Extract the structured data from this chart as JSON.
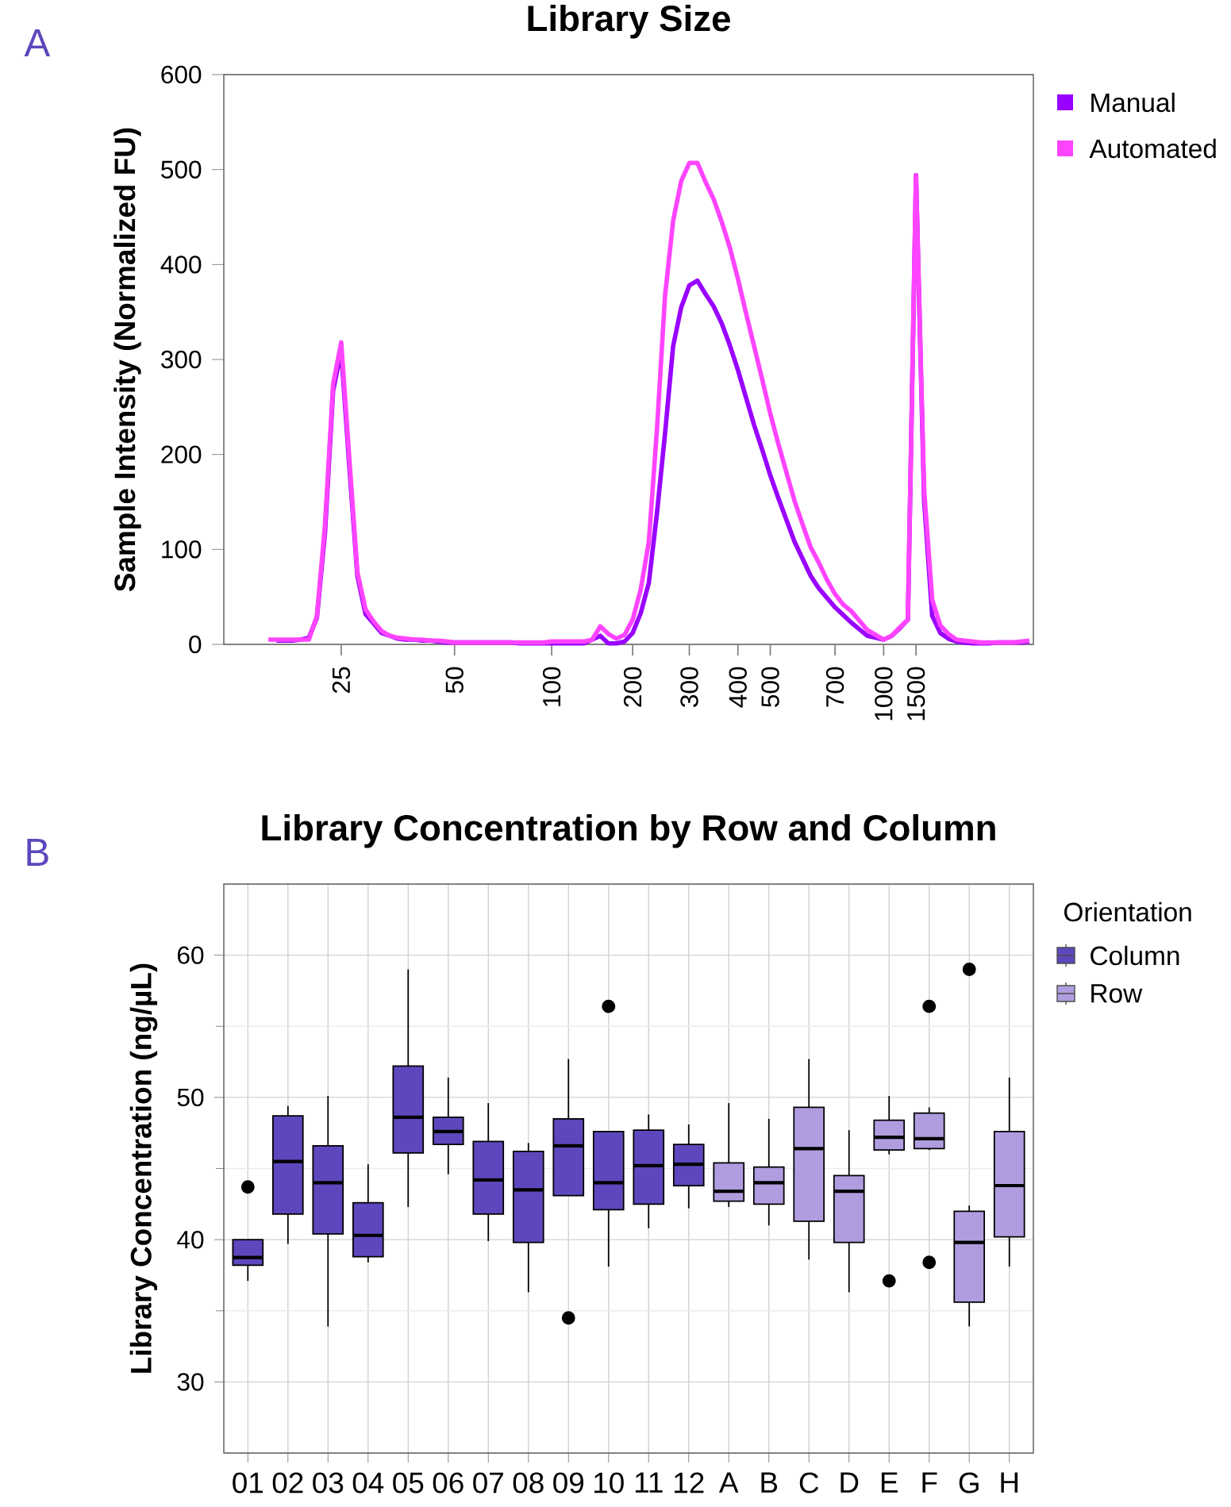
{
  "chart_data": [
    {
      "type": "line",
      "title": "Library Size",
      "ylabel": "Sample Intensity (Normalized FU)",
      "annotations": [
        "A"
      ],
      "legend": "right",
      "ylim": [
        0,
        600
      ],
      "yticks": [
        0,
        100,
        200,
        300,
        400,
        500,
        600
      ],
      "categories": [
        null,
        null,
        null,
        null,
        null,
        null,
        null,
        null,
        null,
        null,
        null,
        null,
        null,
        null,
        "25",
        null,
        null,
        null,
        null,
        null,
        null,
        null,
        null,
        null,
        null,
        null,
        null,
        null,
        "50",
        null,
        null,
        null,
        null,
        null,
        null,
        null,
        null,
        null,
        null,
        null,
        "100",
        null,
        null,
        null,
        null,
        null,
        null,
        null,
        null,
        null,
        "200",
        null,
        null,
        null,
        null,
        null,
        null,
        "300",
        null,
        null,
        null,
        null,
        null,
        "400",
        null,
        null,
        null,
        "500",
        null,
        null,
        null,
        null,
        null,
        null,
        null,
        "700",
        null,
        null,
        null,
        null,
        null,
        "1000",
        null,
        null,
        null,
        "1500",
        null,
        null,
        null,
        null,
        null,
        null,
        null,
        null,
        null,
        null,
        null,
        null,
        null,
        null
      ],
      "series": [
        {
          "name": "Manual",
          "color": "#9900ff",
          "values": [
            null,
            null,
            null,
            null,
            null,
            null,
            4,
            4,
            4,
            5,
            7,
            28,
            118,
            267,
            309,
            188,
            72,
            32,
            22,
            12,
            9,
            6,
            5,
            5,
            4,
            4,
            3,
            2,
            2,
            2,
            2,
            2,
            2,
            2,
            2,
            2,
            1,
            1,
            1,
            1,
            1,
            1,
            1,
            1,
            1,
            5,
            9,
            1,
            1,
            3,
            12,
            33,
            65,
            138,
            222,
            314,
            355,
            378,
            383,
            369,
            356,
            338,
            315,
            289,
            260,
            231,
            205,
            178,
            154,
            131,
            108,
            90,
            72,
            59,
            49,
            39,
            31,
            23,
            16,
            9,
            7,
            5,
            9,
            17,
            26,
            494,
            152,
            30,
            12,
            6,
            3,
            2,
            1,
            1,
            1,
            2,
            2,
            2,
            2,
            3
          ]
        },
        {
          "name": "Automated",
          "color": "#ff44ff",
          "values": [
            null,
            null,
            null,
            null,
            null,
            5,
            5,
            5,
            5,
            5,
            5,
            30,
            126,
            274,
            318,
            196,
            76,
            37,
            24,
            14,
            9,
            7,
            6,
            5,
            5,
            4,
            4,
            3,
            2,
            2,
            2,
            2,
            2,
            2,
            2,
            2,
            2,
            2,
            2,
            2,
            3,
            3,
            3,
            3,
            3,
            5,
            19,
            11,
            6,
            10,
            26,
            58,
            108,
            226,
            367,
            446,
            488,
            507,
            507,
            487,
            469,
            445,
            418,
            385,
            349,
            314,
            279,
            243,
            211,
            181,
            151,
            126,
            102,
            86,
            68,
            53,
            42,
            35,
            25,
            15,
            10,
            5,
            9,
            18,
            26,
            494,
            163,
            47,
            20,
            11,
            5,
            4,
            3,
            2,
            2,
            2,
            2,
            2,
            3,
            4
          ]
        }
      ]
    },
    {
      "type": "box",
      "title": "Library Concentration by Row and Column",
      "ylabel": "Library Concentration (ng/µL)",
      "annotations": [
        "B"
      ],
      "legend": "right",
      "legend_title": "Orientation",
      "grid": true,
      "categories": [
        "01",
        "02",
        "03",
        "04",
        "05",
        "06",
        "07",
        "08",
        "09",
        "10",
        "11",
        "12",
        "A",
        "B",
        "C",
        "D",
        "E",
        "F",
        "G",
        "H"
      ],
      "ylim": [
        25,
        65
      ],
      "yticks": [
        30,
        40,
        50,
        60
      ],
      "series": [
        {
          "name": "Column",
          "color": "#5e47bd",
          "boxes": [
            {
              "low": 37.1,
              "q1": 38.2,
              "median": 38.75,
              "q3": 40.0,
              "high": 40.0,
              "outliers": [
                43.7
              ]
            },
            {
              "low": 39.7,
              "q1": 41.8,
              "median": 45.5,
              "q3": 48.7,
              "high": 49.4
            },
            {
              "low": 33.9,
              "q1": 40.4,
              "median": 44.0,
              "q3": 46.6,
              "high": 50.1
            },
            {
              "low": 38.4,
              "q1": 38.8,
              "median": 40.3,
              "q3": 42.6,
              "high": 45.3
            },
            {
              "low": 42.3,
              "q1": 46.1,
              "median": 48.6,
              "q3": 52.2,
              "high": 59.0
            },
            {
              "low": 44.6,
              "q1": 46.7,
              "median": 47.6,
              "q3": 48.6,
              "high": 51.4
            },
            {
              "low": 39.9,
              "q1": 41.8,
              "median": 44.2,
              "q3": 46.9,
              "high": 49.6
            },
            {
              "low": 36.3,
              "q1": 39.8,
              "median": 43.5,
              "q3": 46.2,
              "high": 46.8
            },
            {
              "low": 43.1,
              "q1": 43.1,
              "median": 46.6,
              "q3": 48.5,
              "high": 52.7,
              "outliers": [
                34.5
              ]
            },
            {
              "low": 38.1,
              "q1": 42.1,
              "median": 44.0,
              "q3": 47.6,
              "high": 47.6,
              "outliers": [
                56.4
              ]
            },
            {
              "low": 40.8,
              "q1": 42.5,
              "median": 45.2,
              "q3": 47.7,
              "high": 48.8
            },
            {
              "low": 42.2,
              "q1": 43.8,
              "median": 45.3,
              "q3": 46.7,
              "high": 48.1
            },
            null,
            null,
            null,
            null,
            null,
            null,
            null,
            null
          ]
        },
        {
          "name": "Row",
          "color": "#b09ddf",
          "boxes": [
            null,
            null,
            null,
            null,
            null,
            null,
            null,
            null,
            null,
            null,
            null,
            null,
            {
              "low": 42.3,
              "q1": 42.7,
              "median": 43.4,
              "q3": 45.4,
              "high": 49.6
            },
            {
              "low": 41.0,
              "q1": 42.5,
              "median": 44.0,
              "q3": 45.1,
              "high": 48.5
            },
            {
              "low": 38.6,
              "q1": 41.3,
              "median": 46.4,
              "q3": 49.3,
              "high": 52.7
            },
            {
              "low": 36.3,
              "q1": 39.8,
              "median": 43.4,
              "q3": 44.5,
              "high": 47.7
            },
            {
              "low": 46.0,
              "q1": 46.3,
              "median": 47.2,
              "q3": 48.4,
              "high": 50.1,
              "outliers": [
                37.1
              ]
            },
            {
              "low": 46.3,
              "q1": 46.4,
              "median": 47.1,
              "q3": 48.9,
              "high": 49.3,
              "outliers": [
                56.4,
                38.4
              ]
            },
            {
              "low": 33.9,
              "q1": 35.6,
              "median": 39.8,
              "q3": 42.0,
              "high": 42.4,
              "outliers": [
                59.0
              ]
            },
            {
              "low": 38.1,
              "q1": 40.2,
              "median": 43.8,
              "q3": 47.6,
              "high": 51.4
            }
          ]
        }
      ]
    }
  ]
}
